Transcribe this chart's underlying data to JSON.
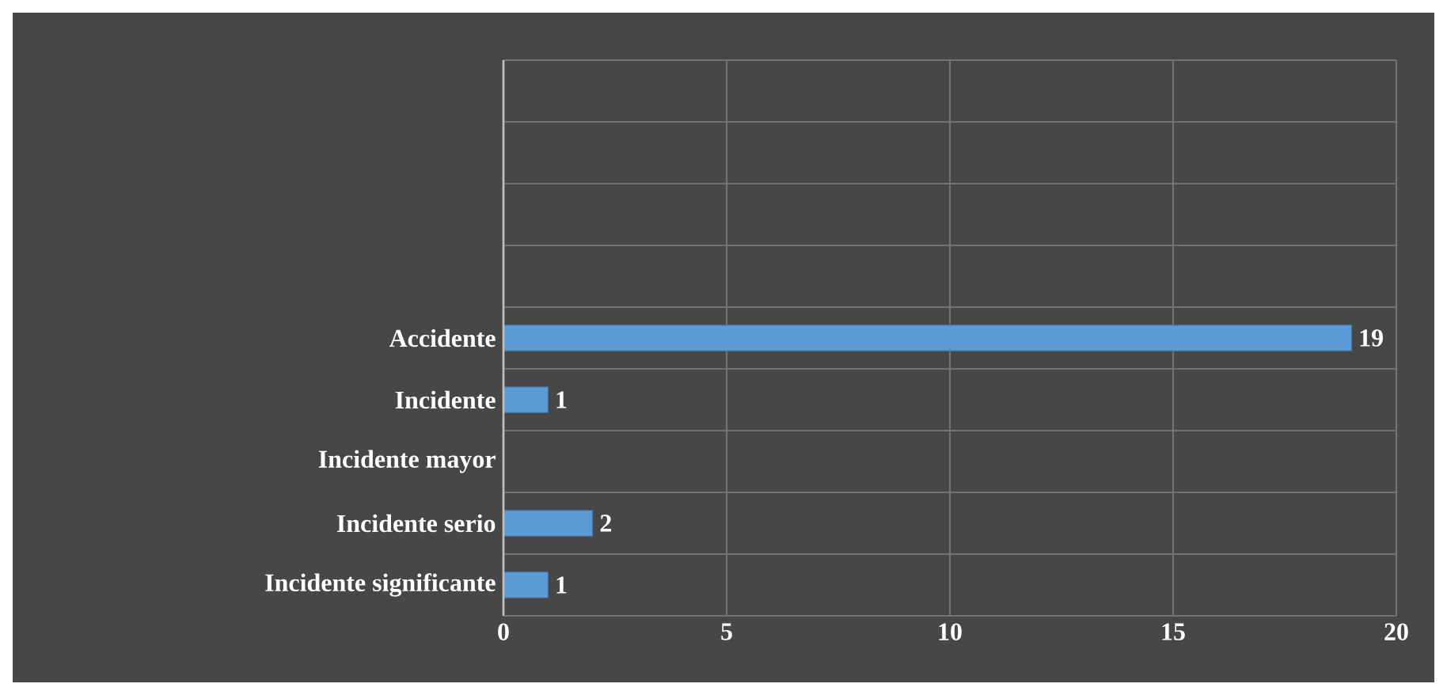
{
  "chart_data": {
    "type": "bar",
    "orientation": "horizontal",
    "categories": [
      null,
      null,
      null,
      null,
      "Accidente",
      "Incidente",
      "Incidente mayor",
      "Incidente serio",
      "Incidente significante"
    ],
    "values": [
      null,
      null,
      null,
      null,
      19,
      1,
      null,
      2,
      1
    ],
    "color": "#5b9bd5",
    "xlim": [
      0,
      20
    ],
    "xticks": [
      0,
      5,
      10,
      15,
      20
    ],
    "grid": true,
    "data_labels": true
  }
}
